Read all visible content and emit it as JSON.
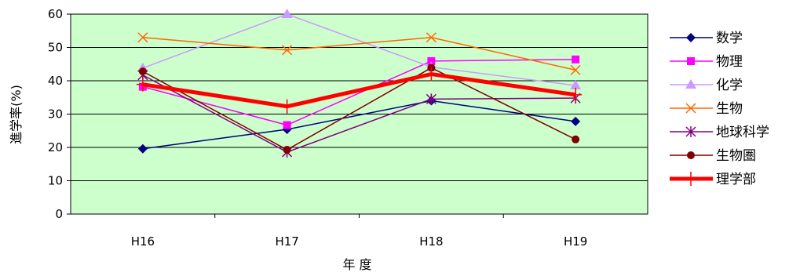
{
  "chart_data": {
    "type": "line",
    "title": "",
    "xlabel": "年 度",
    "ylabel": "進学率(%)",
    "ylim": [
      0,
      60
    ],
    "yticks": [
      0,
      10,
      20,
      30,
      40,
      50,
      60
    ],
    "categories": [
      "H16",
      "H17",
      "H18",
      "H19"
    ],
    "grid": true,
    "legend": "right",
    "plot_background": "#ccffcc",
    "series": [
      {
        "name": "数学",
        "values": [
          19.6,
          25.4,
          34.0,
          27.8
        ],
        "color": "#000080",
        "marker": "diamond",
        "width": 1.5
      },
      {
        "name": "物理",
        "values": [
          38.2,
          26.7,
          45.9,
          46.4
        ],
        "color": "#ff00ff",
        "marker": "square",
        "width": 1.5
      },
      {
        "name": "化学",
        "values": [
          43.8,
          60.0,
          44.1,
          38.6
        ],
        "color": "#cc99ff",
        "marker": "triangle",
        "width": 1.5
      },
      {
        "name": "生物",
        "values": [
          53.0,
          49.2,
          53.0,
          43.2
        ],
        "color": "#ff6600",
        "marker": "x",
        "width": 1.5
      },
      {
        "name": "地球科学",
        "values": [
          41.7,
          18.6,
          34.5,
          34.8
        ],
        "color": "#800080",
        "marker": "asterisk",
        "width": 1.5
      },
      {
        "name": "生物圏",
        "values": [
          42.8,
          19.3,
          43.9,
          22.4
        ],
        "color": "#800000",
        "marker": "circle",
        "width": 1.5
      },
      {
        "name": "理学部",
        "values": [
          38.9,
          32.3,
          42.0,
          35.8
        ],
        "color": "#ff0000",
        "marker": "plus",
        "width": 5
      }
    ]
  }
}
